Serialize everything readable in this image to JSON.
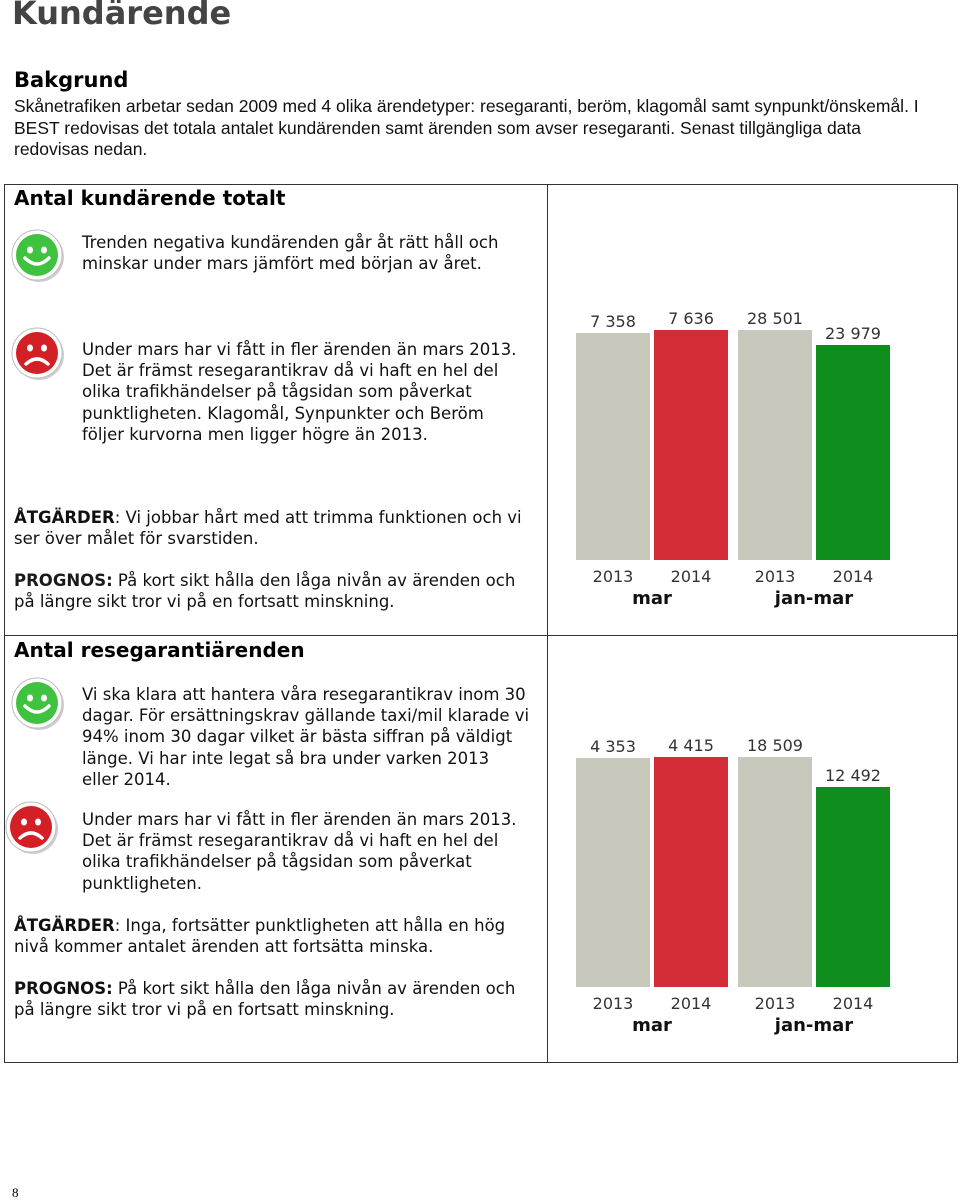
{
  "page_title": "Kundärende",
  "background": {
    "heading": "Bakgrund",
    "text": "Skånetrafiken arbetar sedan 2009 med 4 olika ärendetyper: resegaranti, beröm, klagomål samt synpunkt/önskemål. I BEST redovisas det totala antalet kundärenden samt ärenden som avser resegaranti. Senast tillgängliga data redovisas nedan."
  },
  "section1": {
    "title": "Antal kundärende totalt",
    "positive_text": "Trenden negativa kundärenden går åt rätt håll och minskar under mars jämfört med början av året.",
    "negative_text": "Under mars har vi fått in fler ärenden än mars 2013. Det är främst resegarantikrav då vi haft en hel del olika trafikhändelser på tågsidan som påverkat punktligheten. Klagomål, Synpunkter och Beröm följer kurvorna men ligger högre än 2013.",
    "actions_label": "ÅTGÄRDER",
    "actions_text": ": Vi jobbar hårt med att trimma funktionen och vi ser över målet för svarstiden.",
    "forecast_label": "PROGNOS:",
    "forecast_text": " På kort sikt hålla den låga nivån av ärenden och på längre sikt tror vi på en fortsatt minskning."
  },
  "section2": {
    "title": "Antal resegarantiärenden",
    "positive_text": "Vi ska klara att hantera våra resegarantikrav inom 30 dagar. För ersättningskrav gällande taxi/mil klarade vi 94% inom 30 dagar vilket är bästa siffran på väldigt länge. Vi har inte legat så bra under varken 2013 eller 2014.",
    "negative_text": "Under mars har vi fått in fler ärenden än mars 2013. Det är främst resegarantikrav då vi haft en hel del olika trafikhändelser på tågsidan som påverkat punktligheten.",
    "actions_label": "ÅTGÄRDER",
    "actions_text": ": Inga, fortsätter punktligheten att hålla en hög nivå kommer antalet ärenden att fortsätta minska.",
    "forecast_label": "PROGNOS:",
    "forecast_text": " På kort sikt hålla den låga nivån av ärenden och på längre sikt tror vi på en fortsatt minskning."
  },
  "smiley_icons": {
    "happy": "happy-face-icon",
    "sad": "sad-face-icon"
  },
  "colors": {
    "happy": "#3fc23f",
    "sad": "#d31f26",
    "gray_bar": "#c8c8bd",
    "red_bar": "#d22c36",
    "green_bar": "#0f8e1d"
  },
  "page_number": "8",
  "chart_data": [
    {
      "type": "bar",
      "groups": [
        {
          "label": "mar",
          "bars": [
            {
              "category": "2013",
              "value": 7358,
              "label": "7 358",
              "color": "#c8c8bd"
            },
            {
              "category": "2014",
              "value": 7636,
              "label": "7 636",
              "color": "#d22c36"
            }
          ]
        },
        {
          "label": "jan-mar",
          "bars": [
            {
              "category": "2013",
              "value": 28501,
              "label": "28 501",
              "color": "#c8c8bd"
            },
            {
              "category": "2014",
              "value": 23979,
              "label": "23 979",
              "color": "#0f8e1d"
            }
          ]
        }
      ]
    },
    {
      "type": "bar",
      "groups": [
        {
          "label": "mar",
          "bars": [
            {
              "category": "2013",
              "value": 4353,
              "label": "4 353",
              "color": "#c8c8bd"
            },
            {
              "category": "2014",
              "value": 4415,
              "label": "4 415",
              "color": "#d22c36"
            }
          ]
        },
        {
          "label": "jan-mar",
          "bars": [
            {
              "category": "2013",
              "value": 18509,
              "label": "18 509",
              "color": "#c8c8bd"
            },
            {
              "category": "2014",
              "value": 12492,
              "label": "12 492",
              "color": "#0f8e1d"
            }
          ]
        }
      ]
    }
  ]
}
